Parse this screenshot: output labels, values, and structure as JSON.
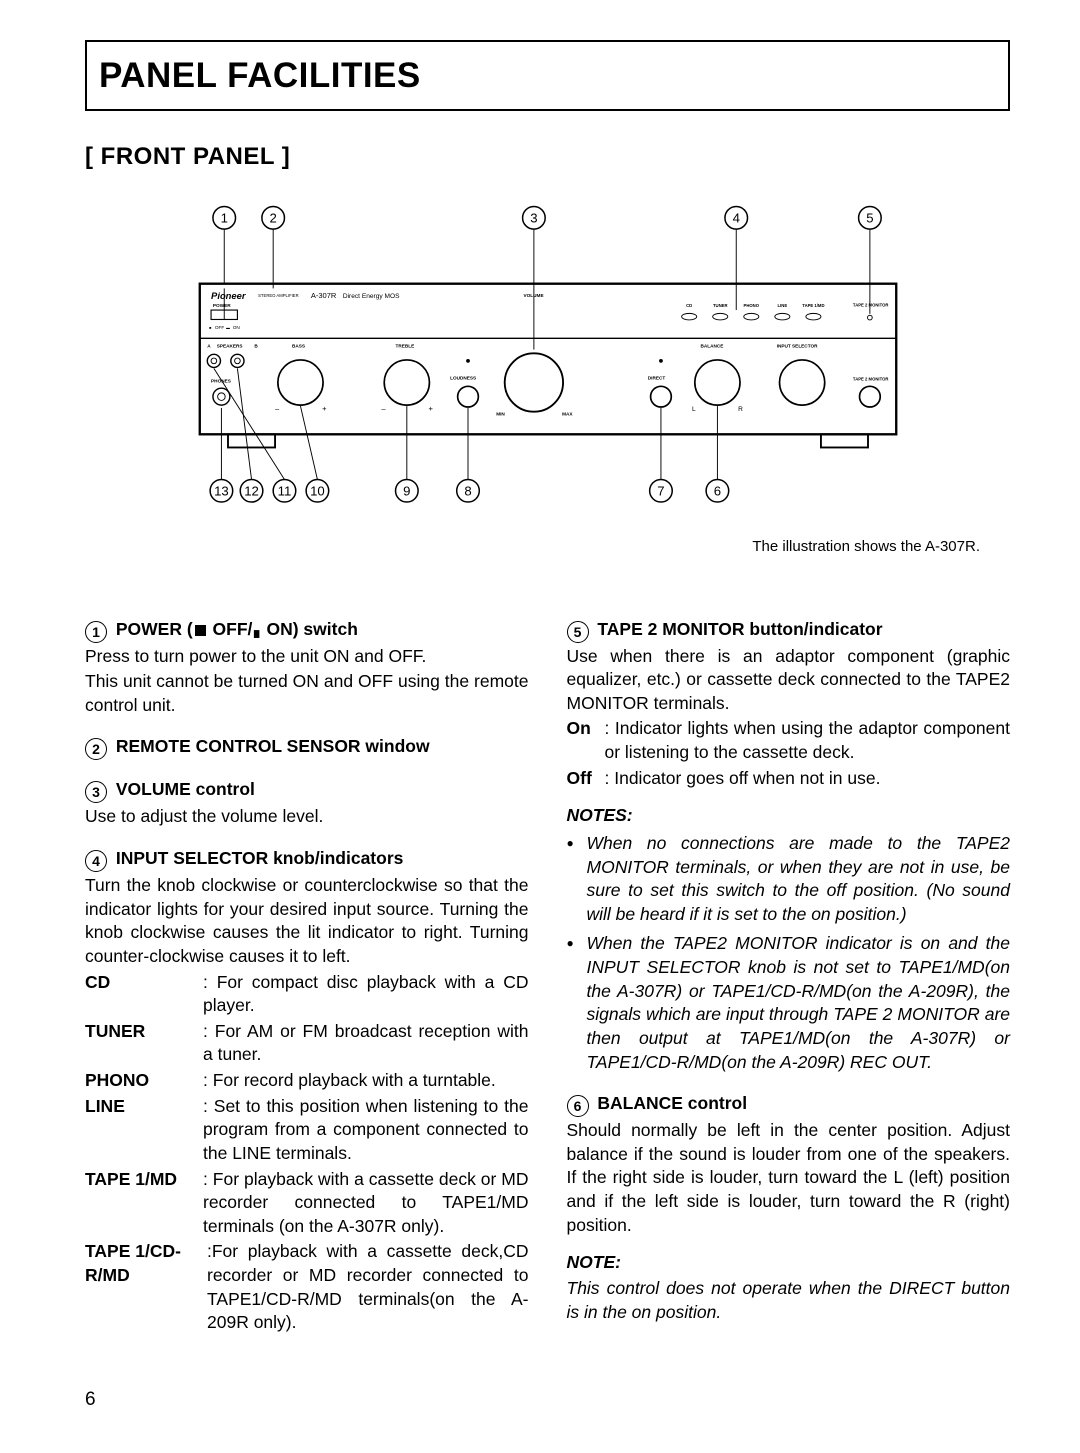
{
  "page": {
    "number": "6",
    "title": "PANEL FACILITIES",
    "subtitle": "[ FRONT PANEL ]",
    "caption": "The illustration shows the A-307R."
  },
  "diagram": {
    "callouts_top": [
      "1",
      "2",
      "3",
      "4",
      "5"
    ],
    "callouts_bottom": [
      "13",
      "12",
      "11",
      "10",
      "9",
      "8",
      "7",
      "6"
    ],
    "panel": {
      "brand": "Pioneer",
      "subtitle": "STEREO AMPLIFIER",
      "model": "A-307R",
      "tech": "Direct Energy MOS",
      "power_label": "POWER",
      "off": "OFF",
      "on": "ON",
      "off_sym": "■",
      "on_sym": "▬",
      "speakers_a": "A",
      "speakers_b": "B",
      "speakers_label": "SPEAKERS",
      "phones": "PHONES",
      "bass": "BASS",
      "treble": "TREBLE",
      "loudness": "LOUDNESS",
      "min": "MIN",
      "max": "MAX",
      "direct": "DIRECT",
      "volume": "VOLUME",
      "balance": "BALANCE",
      "bal_l": "L",
      "bal_r": "R",
      "input_selector": "INPUT SELECTOR",
      "inputs": [
        "CD",
        "TUNER",
        "PHONO",
        "LINE",
        "TAPE 1/MD"
      ],
      "tape2": "TAPE 2 MONITOR",
      "minus": "–",
      "plus": "+",
      "dot": "•",
      "small_o": "○"
    },
    "colors": {
      "line": "#000000",
      "bg": "#ffffff"
    }
  },
  "left": {
    "s1": {
      "num": "1",
      "title": "POWER (■ OFF/▬ ON) switch",
      "p1": "Press to turn power to the unit ON and OFF.",
      "p2": "This unit cannot be turned ON and OFF using the remote control unit."
    },
    "s2": {
      "num": "2",
      "title": "REMOTE CONTROL SENSOR window"
    },
    "s3": {
      "num": "3",
      "title": "VOLUME control",
      "p1": "Use to adjust the volume level."
    },
    "s4": {
      "num": "4",
      "title": "INPUT SELECTOR knob/indicators",
      "p1": "Turn the knob clockwise or counterclockwise so that the indicator lights for your desired input source. Turning the knob clockwise causes the lit indicator to right. Turning counter-clockwise causes it to left.",
      "items": [
        {
          "k": "CD",
          "v": ": For compact disc playback with a CD player."
        },
        {
          "k": "TUNER",
          "v": ": For AM or FM broadcast reception with a tuner."
        },
        {
          "k": "PHONO",
          "v": ": For record playback with a turntable."
        },
        {
          "k": "LINE",
          "v": ": Set to this position when listening to the program from a component connected to the LINE terminals."
        },
        {
          "k": "TAPE 1/MD",
          "v": ": For playback with a cassette deck or MD recorder connected to TAPE1/MD terminals (on the A-307R only)."
        },
        {
          "k": "TAPE 1/CD-R/MD",
          "v": ":For playback with a cassette deck,CD recorder or MD recorder connected to TAPE1/CD-R/MD terminals(on the A-209R only)."
        }
      ]
    }
  },
  "right": {
    "s5": {
      "num": "5",
      "title": "TAPE 2 MONITOR button/indicator",
      "p1": "Use when there is an adaptor component (graphic equalizer, etc.) or cassette deck connected to the TAPE2 MONITOR terminals.",
      "on": ": Indicator lights when using the adaptor component or listening to the cassette deck.",
      "off": ": Indicator goes off when not in use.",
      "notes_head": "NOTES:",
      "notes": [
        "When no connections are made to the TAPE2 MONITOR terminals, or when they are not in use, be sure to set this switch to the off position. (No sound will be heard if it is set to the on position.)",
        "When the TAPE2 MONITOR indicator is on and the INPUT SELECTOR knob is not set to TAPE1/MD(on the A-307R) or TAPE1/CD-R/MD(on the A-209R), the signals which are input through TAPE 2 MONITOR are then output at TAPE1/MD(on the A-307R) or TAPE1/CD-R/MD(on the A-209R) REC OUT."
      ]
    },
    "s6": {
      "num": "6",
      "title": "BALANCE control",
      "p1": "Should normally be left in the center position. Adjust balance if the sound is louder from one of the speakers. If the right side is louder, turn toward the L (left) position and if the left side is louder, turn toward the R (right) position.",
      "note_head": "NOTE:",
      "note": "This control does not operate when the DIRECT button is in the on position."
    },
    "labels": {
      "on": "On",
      "off": "Off"
    }
  }
}
